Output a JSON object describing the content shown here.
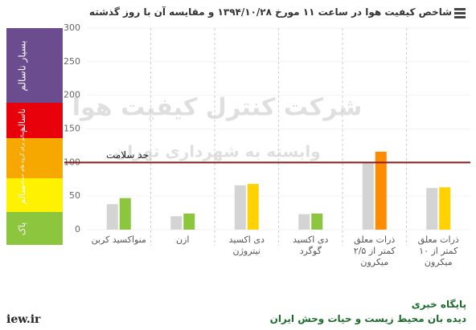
{
  "chart_data": {
    "type": "bar",
    "title": "شاخص کیفیت هوا در ساعت ۱۱ مورخ ۱۳۹۴/۱۰/۲۸ و مقایسه آن با روز گذشته",
    "categories": [
      "منواکسید کربن",
      "ازن",
      "دی اکسید نیتروژن",
      "دی اکسید گوگرد",
      "ذرات معلق کمتر از ۲/۵ میکرون",
      "ذرات معلق کمتر از ۱۰ میکرون"
    ],
    "series": [
      {
        "color": "#d4d4d4",
        "values": [
          38,
          20,
          66,
          23,
          100,
          62
        ]
      },
      {
        "colors": [
          "#8cc63f",
          "#8cc63f",
          "#ffd200",
          "#8cc63f",
          "#ff8c00",
          "#ffd200"
        ],
        "values": [
          47,
          24,
          68,
          24,
          116,
          63
        ]
      }
    ],
    "ylim": [
      0,
      300
    ],
    "yticks": [
      0,
      50,
      100,
      150,
      200,
      250,
      300
    ],
    "reference_line": {
      "value": 100,
      "label": "حد سلامت",
      "color": "#8b1a1a"
    },
    "aqi_bands": [
      {
        "label": "بسیار ناسالم",
        "color": "#6b4c8f"
      },
      {
        "label": "ناسالم",
        "color": "#e8000b"
      },
      {
        "label": "ناسالم برای گروه های حساس",
        "color": "#f7a800"
      },
      {
        "label": "سالم",
        "color": "#fff200"
      },
      {
        "label": "پاک",
        "color": "#8cc63f"
      }
    ],
    "watermark": [
      "شرکت کنترل کیفیت هوا",
      "وابسته به شهرداری تهران"
    ]
  },
  "footer": {
    "site": "iew.ir",
    "line1": "پایگاه خبری",
    "line2": "دیده بان محیط زیست و حیات وحش ایران"
  }
}
